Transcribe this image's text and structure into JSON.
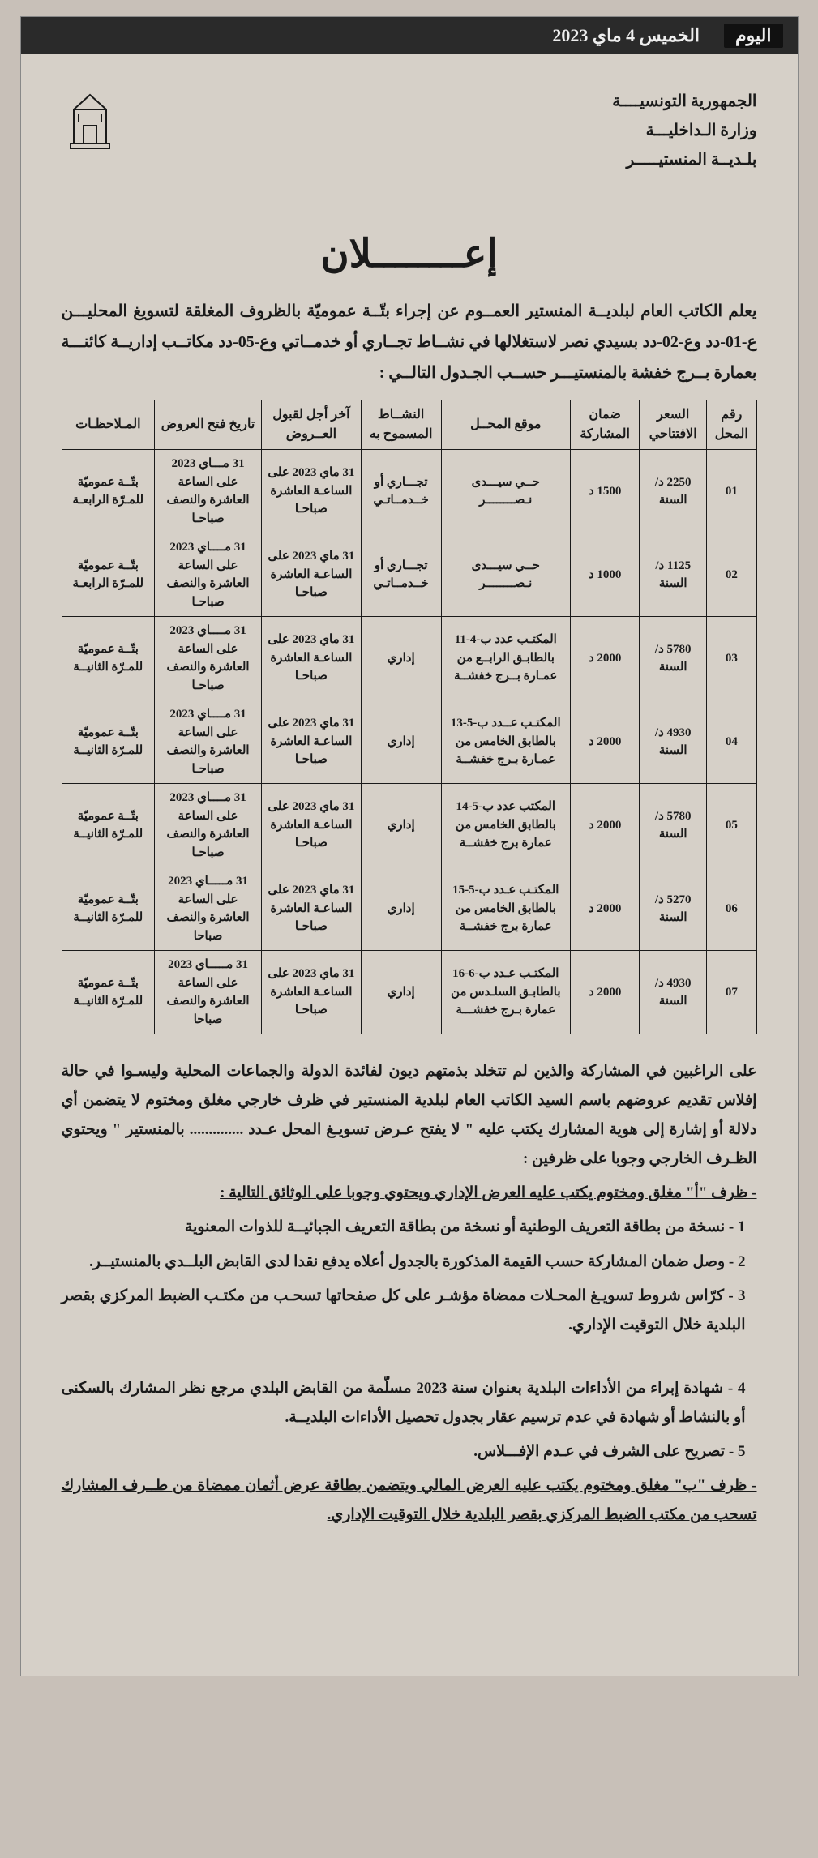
{
  "topbar": {
    "brand": "اليوم",
    "date": "الخميس 4 ماي 2023"
  },
  "header": {
    "line1": "الجمهورية التونسيــــة",
    "line2": "وزارة الـداخليـــة",
    "line3": "بلـديــة المنستيـــــر"
  },
  "title": "إعــــــــلان",
  "intro": "يعلم الكاتب العام لبلديــة المنستير العمــوم عن إجراء بتّــة عموميّة بالظروف المغلقة لتسويغ المحليـــن ع-01-دد وع-02-دد بسيدي نصر لاستغلالها في نشــاط تجــاري أو خدمــاتي وع-05-دد مكاتــب إداريــة كائنـــة بعمارة بــرج خفشة بالمنستيـــر حســب الجـدول التالــي :",
  "columns": [
    "رقم المحل",
    "السعر الافتتاحي",
    "ضمان المشاركة",
    "موقع المحــل",
    "النشــاط المسموح به",
    "آخر أجل لقبول العــروض",
    "تاريخ فتح العروض",
    "المـلاحظـات"
  ],
  "rows": [
    {
      "num": "01",
      "price": "2250 د/السنة",
      "deposit": "1500 د",
      "location": "حــي سيـــدى نـصــــــــر",
      "activity": "تجـــاري أو خــدمــاتـي",
      "deadline": "31 ماي 2023 على الساعـة العاشرة صباحـا",
      "opening": "31 مـــاي 2023 على الساعة العاشرة والنصف صباحـا",
      "note": "بتّــة عموميّة للمـرّة الرابعـة"
    },
    {
      "num": "02",
      "price": "1125 د/السنة",
      "deposit": "1000 د",
      "location": "حــي سيـــدى نـصــــــــر",
      "activity": "تجـــاري أو خــدمــاتـي",
      "deadline": "31 ماي 2023 على الساعـة العاشرة صباحـا",
      "opening": "31 مــــاي 2023 على الساعة العاشرة والنصف صباحـا",
      "note": "بتّــة عموميّة للمـرّة الرابعـة"
    },
    {
      "num": "03",
      "price": "5780 د/السنة",
      "deposit": "2000 د",
      "location": "المكتـب عدد ب-4-11 بالطابـق الرابــع من عمـارة بــرج خفشــة",
      "activity": "إداري",
      "deadline": "31 ماي 2023 على الساعـة العاشرة صباحـا",
      "opening": "31 مــــاي 2023 على الساعة العاشرة والنصف صباحـا",
      "note": "بتّــة عموميّة للمـرّة الثانيــة"
    },
    {
      "num": "04",
      "price": "4930 د/السنة",
      "deposit": "2000 د",
      "location": "المكتـب عــدد ب-5-13 بالطابق الخامس من عمـارة بـرج خفشــة",
      "activity": "إداري",
      "deadline": "31 ماي 2023 على الساعـة العاشرة صباحـا",
      "opening": "31 مــــاي 2023 على الساعة العاشرة والنصف صباحـا",
      "note": "بتّــة عموميّة للمـرّة الثانيــة"
    },
    {
      "num": "05",
      "price": "5780 د/السنة",
      "deposit": "2000 د",
      "location": "المكتب عدد ب-5-14 بالطابق الخامس من عمارة برج خفشــة",
      "activity": "إداري",
      "deadline": "31 ماي 2023 على الساعـة العاشرة صباحـا",
      "opening": "31 مــــاي 2023 على الساعة العاشرة والنصف صباحـا",
      "note": "بتّــة عموميّة للمـرّة الثانيــة"
    },
    {
      "num": "06",
      "price": "5270 د/السنة",
      "deposit": "2000 د",
      "location": "المكتـب عـدد ب-5-15 بالطابق الخامس من عمارة برج خفشــة",
      "activity": "إداري",
      "deadline": "31 ماي 2023 على الساعـة العاشرة صباحـا",
      "opening": "31 مـــــاي 2023 على الساعة العاشرة والنصف صباحا",
      "note": "بتّــة عموميّة للمـرّة الثانيــة"
    },
    {
      "num": "07",
      "price": "4930 د/السنة",
      "deposit": "2000 د",
      "location": "المكتـب عـدد ب-6-16 بالطابـق الساـدس من عمارة بـرج خفشـــة",
      "activity": "إداري",
      "deadline": "31 ماي 2023 على الساعـة العاشرة صباحـا",
      "opening": "31 مـــــاي 2023 على الساعة العاشرة والنصف صباحا",
      "note": "بتّــة عموميّة للمـرّة الثانيــة"
    }
  ],
  "body": {
    "p1": "على الراغبين في المشاركة والذين لم تتخلد بذمتهم ديون لفائدة الدولة والجماعات المحلية وليسـوا في حالة إفلاس تقديم عروضهم باسم السيد الكاتب العام لبلدية المنستير في ظرف خارجي مغلق ومختوم لا يتضمن أي دلالة أو إشارة إلى هوية المشارك يكتب عليه \" لا يفتح عـرض تسويـغ المحل عـدد .............. بالمنستير \" ويحتوي الظـرف الخارجي وجوبا على ظرفين :",
    "pa": "- ظرف \"أ\" مغلق ومختوم يكتب عليه العرض الإداري ويحتوي وجوبا على الوثائق التالية :",
    "n1": "1 - نسخة من بطاقة التعريف الوطنية أو نسخة من بطاقة التعريف الجبائيــة للذوات المعنوية",
    "n2": "2 - وصل ضمان المشاركة حسب القيمة المذكورة بالجدول أعلاه  يدفع نقدا لدى القابض البلــدي بالمنستيــر.",
    "n3": "3 - كرّاس شروط  تسويـغ المحـلات  ممضاة مؤشـر على كل صفحاتها تسحـب من مكتـب الضبط المركزي  بقصر البلدية خلال التوقيت الإداري.",
    "n4": "4 - شهادة إبراء من الأداءات البلدية بعنوان سنة 2023 مسلّمة من القابض البلدي مرجع نظر المشارك بالسكنى أو بالنشاط أو شهادة في عدم ترسيم عقار بجدول تحصيل الأداءات البلديــة.",
    "n5": "5 - تصريح على الشرف في عـدم الإفـــلاس.",
    "pb": "- ظرف \"ب\" مغلق ومختوم يكتب عليه العرض المالي ويتضمن بطاقة عرض أثمان ممضاة من طــرف المشارك تسحب من مكتب الضبط المركزي بقصر البلدية خلال التوقيت الإداري."
  },
  "style": {
    "container_width": 960,
    "background_page": "#c8c0b8",
    "background_sheet": "#d6d0c8",
    "text_color": "#1a1a1a",
    "border_color": "#1a1a1a",
    "topbar_bg": "#2a2a2a",
    "topbar_fg": "#eeeeee"
  }
}
